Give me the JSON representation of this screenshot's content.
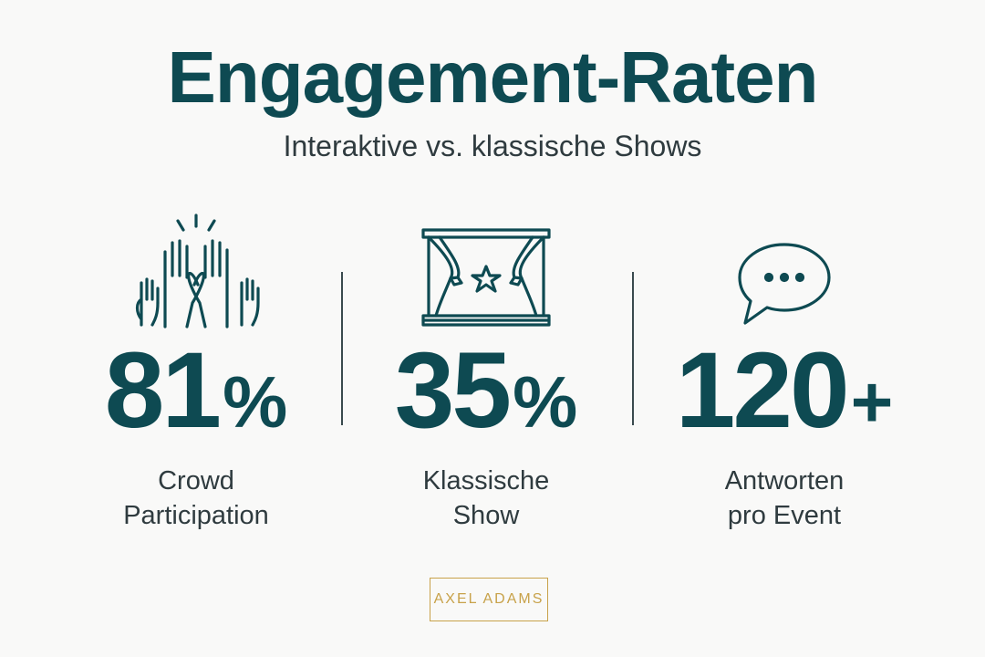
{
  "header": {
    "title": "Engagement-Raten",
    "subtitle": "Interaktive vs. klassische Shows"
  },
  "stats": [
    {
      "icon": "raised-hands-icon",
      "value": "81",
      "suffix": "%",
      "label_line1": "Crowd",
      "label_line2": "Participation"
    },
    {
      "icon": "theater-stage-icon",
      "value": "35",
      "suffix": "%",
      "label_line1": "Klassische",
      "label_line2": "Show"
    },
    {
      "icon": "speech-bubble-icon",
      "value": "120",
      "suffix": "+",
      "label_line1": "Antworten",
      "label_line2": "pro Event"
    }
  ],
  "brand": {
    "text": "AXEL ADAMS"
  },
  "colors": {
    "primary": "#0e4a52",
    "text": "#2f3b3f",
    "accent_gold": "#c8a24a",
    "background": "#f9f9f8"
  }
}
